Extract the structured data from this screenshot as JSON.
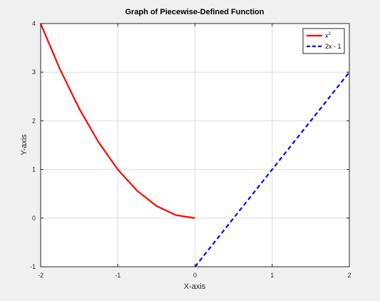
{
  "chart_data": {
    "type": "line",
    "title": "Graph of Piecewise-Defined Function",
    "xlabel": "X-axis",
    "ylabel": "Y-axis",
    "xlim": [
      -2,
      2
    ],
    "ylim": [
      -1,
      4
    ],
    "xticks": [
      -2,
      -1,
      0,
      1,
      2
    ],
    "yticks": [
      -1,
      0,
      1,
      2,
      3,
      4
    ],
    "x_tick_labels": [
      "-2",
      "-1",
      "0",
      "1",
      "2"
    ],
    "y_tick_labels": [
      "-1",
      "0",
      "1",
      "2",
      "3",
      "4"
    ],
    "grid": true,
    "legend_position": "top-right",
    "series": [
      {
        "name": "x²",
        "legend_base": "x",
        "legend_sup": "2",
        "color": "#ff0000",
        "style": "solid",
        "function": "x^2",
        "domain": [
          -2,
          0
        ],
        "x": [
          -2,
          -1.75,
          -1.5,
          -1.25,
          -1,
          -0.75,
          -0.5,
          -0.25,
          0
        ],
        "y": [
          4,
          3.0625,
          2.25,
          1.5625,
          1,
          0.5625,
          0.25,
          0.0625,
          0
        ]
      },
      {
        "name": "2x - 1",
        "color": "#0000ff",
        "style": "dashed",
        "function": "2x - 1",
        "domain": [
          0,
          2
        ],
        "x": [
          0,
          1,
          2
        ],
        "y": [
          -1,
          1,
          3
        ]
      }
    ]
  }
}
